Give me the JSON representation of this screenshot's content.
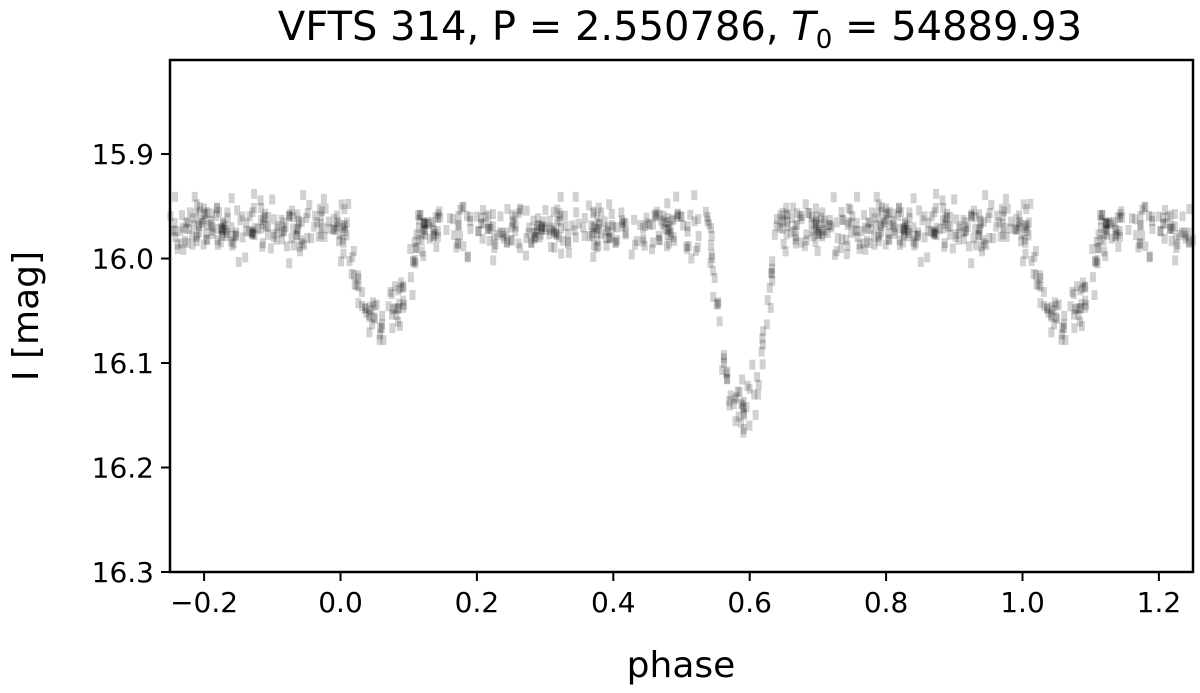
{
  "chart_data": {
    "type": "scatter",
    "title_parts": {
      "prefix": "VFTS 314, P = 2.550786, ",
      "t_symbol": "T",
      "t_subscript": "0",
      "suffix": " = 54889.93"
    },
    "xlabel": "phase",
    "ylabel": "I [mag]",
    "xlim": [
      -0.25,
      1.25
    ],
    "ylim": [
      16.3,
      15.81
    ],
    "y_inverted": true,
    "grid": false,
    "x_ticks": [
      {
        "value": -0.2,
        "label": "−0.2"
      },
      {
        "value": 0.0,
        "label": "0.0"
      },
      {
        "value": 0.2,
        "label": "0.2"
      },
      {
        "value": 0.4,
        "label": "0.4"
      },
      {
        "value": 0.6,
        "label": "0.6"
      },
      {
        "value": 0.8,
        "label": "0.8"
      },
      {
        "value": 1.0,
        "label": "1.0"
      },
      {
        "value": 1.2,
        "label": "1.2"
      }
    ],
    "y_ticks": [
      {
        "value": 15.9,
        "label": "15.9"
      },
      {
        "value": 16.0,
        "label": "16.0"
      },
      {
        "value": 16.1,
        "label": "16.1"
      },
      {
        "value": 16.2,
        "label": "16.2"
      },
      {
        "value": 16.3,
        "label": "16.3"
      }
    ],
    "marker_color": "#000000",
    "marker_alpha": 0.18,
    "light_curve_model": {
      "baseline_mag": 15.97,
      "scatter_mag": 0.012,
      "eclipses": [
        {
          "phase": 0.06,
          "depth_mag": 0.09,
          "half_width": 0.055
        },
        {
          "phase": 0.59,
          "depth_mag": 0.18,
          "half_width": 0.05
        }
      ]
    }
  },
  "style": {
    "background": "#ffffff",
    "axis_color": "#000000"
  }
}
